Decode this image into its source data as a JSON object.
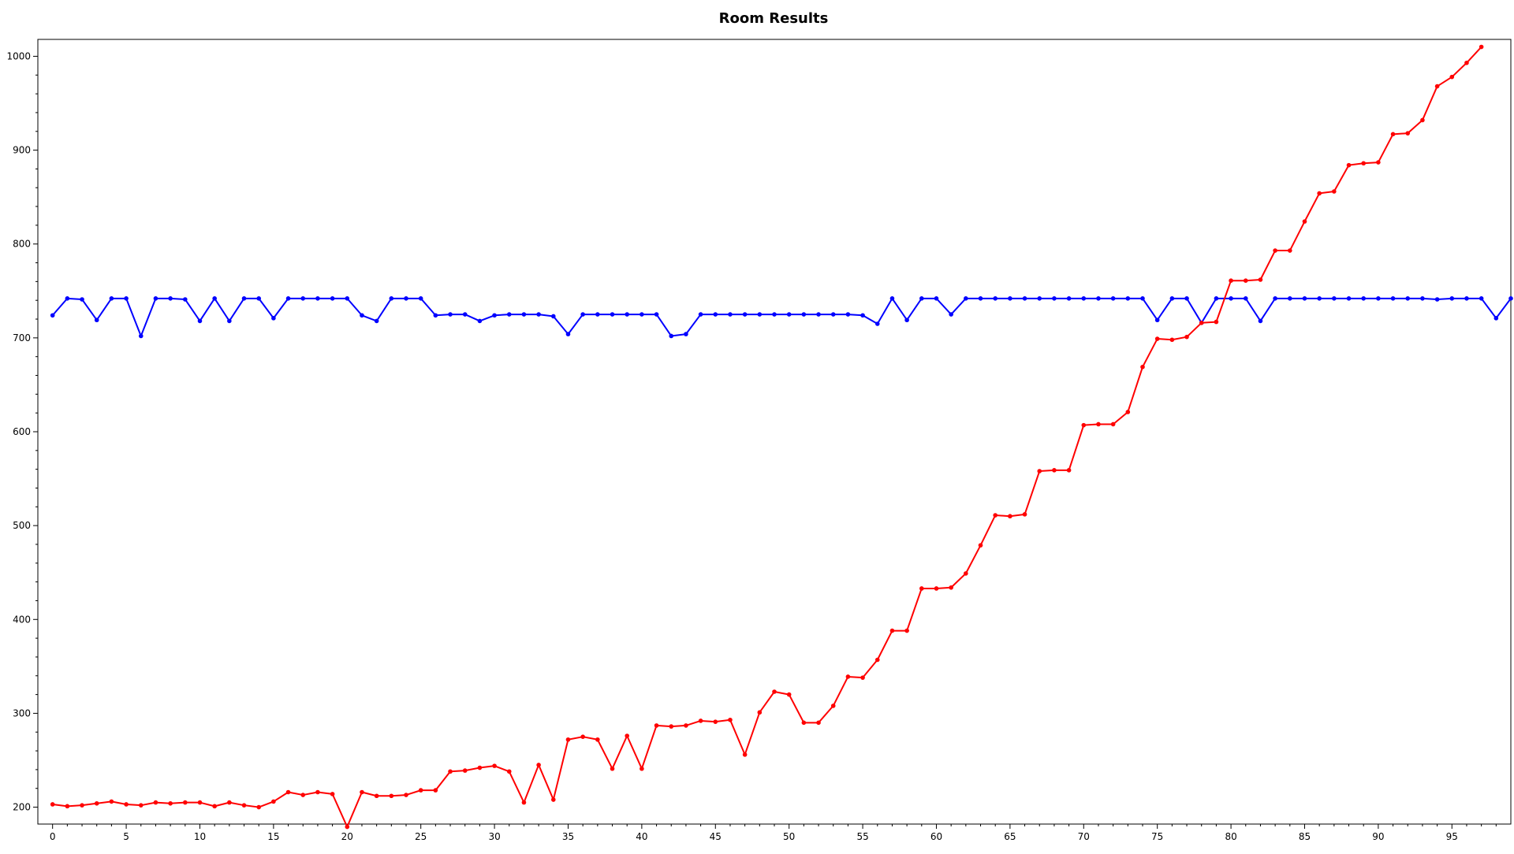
{
  "chart_data": {
    "type": "line",
    "title": "Room Results",
    "xlabel": "",
    "ylabel": "",
    "xlim": [
      -1,
      99
    ],
    "ylim": [
      182,
      1018
    ],
    "x_ticks": [
      0,
      5,
      10,
      15,
      20,
      25,
      30,
      35,
      40,
      45,
      50,
      55,
      60,
      65,
      70,
      75,
      80,
      85,
      90,
      95
    ],
    "y_ticks": [
      200,
      300,
      400,
      500,
      600,
      700,
      800,
      900,
      1000
    ],
    "grid": false,
    "legend": "none",
    "series": [
      {
        "color": "#0000ff",
        "x_start": 0,
        "values": [
          724,
          742,
          741,
          719,
          742,
          742,
          702,
          742,
          742,
          741,
          718,
          742,
          718,
          742,
          742,
          721,
          742,
          742,
          742,
          742,
          742,
          724,
          718,
          742,
          742,
          742,
          724,
          725,
          725,
          718,
          724,
          725,
          725,
          725,
          723,
          704,
          725,
          725,
          725,
          725,
          725,
          725,
          702,
          704,
          725,
          725,
          725,
          725,
          725,
          725,
          725,
          725,
          725,
          725,
          725,
          724,
          715,
          742,
          719,
          742,
          742,
          725,
          742,
          742,
          742,
          742,
          742,
          742,
          742,
          742,
          742,
          742,
          742,
          742,
          742,
          719,
          742,
          742,
          716,
          742,
          742,
          742,
          718,
          742,
          742,
          742,
          742,
          742,
          742,
          742,
          742,
          742,
          742,
          742,
          741,
          742,
          742,
          742,
          721,
          742
        ]
      },
      {
        "color": "#ff0000",
        "x_start": 0,
        "values": [
          203,
          201,
          202,
          204,
          206,
          203,
          202,
          205,
          204,
          205,
          205,
          201,
          205,
          202,
          200,
          206,
          216,
          213,
          216,
          214,
          179,
          216,
          212,
          212,
          213,
          218,
          218,
          238,
          239,
          242,
          244,
          238,
          205,
          245,
          208,
          272,
          275,
          272,
          241,
          276,
          241,
          287,
          286,
          287,
          292,
          291,
          293,
          256,
          301,
          323,
          320,
          290,
          290,
          308,
          339,
          338,
          357,
          388,
          388,
          433,
          433,
          434,
          449,
          479,
          511,
          510,
          512,
          558,
          559,
          559,
          607,
          608,
          608,
          621,
          669,
          699,
          698,
          701,
          716,
          717,
          761,
          761,
          762,
          793,
          793,
          824,
          854,
          856,
          884,
          886,
          887,
          917,
          918,
          932,
          968,
          978,
          993,
          1010
        ]
      }
    ]
  }
}
